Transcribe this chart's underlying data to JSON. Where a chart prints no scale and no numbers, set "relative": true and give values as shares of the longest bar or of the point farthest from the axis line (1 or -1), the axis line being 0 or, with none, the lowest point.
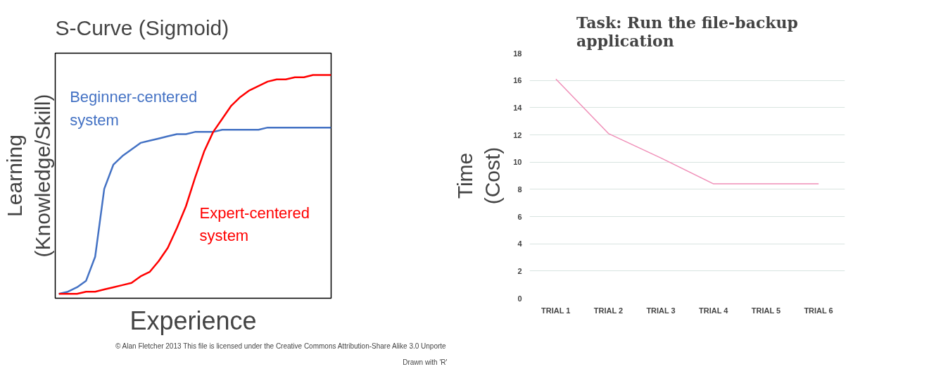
{
  "chart_data": [
    {
      "type": "line",
      "title": "S-Curve (Sigmoid)",
      "xlabel": "Experience",
      "ylabel": "Learning (Knowledge/Skill)",
      "relative": true,
      "grid": false,
      "categories": [
        null,
        null,
        null,
        null,
        null,
        null,
        null,
        null,
        null,
        null,
        null,
        null,
        null,
        null,
        null,
        null,
        null,
        null,
        null,
        null,
        null,
        null,
        null,
        null,
        null,
        null,
        null,
        null,
        null,
        null,
        null
      ],
      "series": [
        {
          "name": "Beginner-centered system",
          "color": "#4472c4",
          "values": [
            0,
            0.01,
            0.03,
            0.06,
            0.17,
            0.48,
            0.59,
            0.63,
            0.66,
            0.69,
            0.7,
            0.71,
            0.72,
            0.73,
            0.73,
            0.74,
            0.74,
            0.74,
            0.75,
            0.75,
            0.75,
            0.75,
            0.75,
            0.76,
            0.76,
            0.76,
            0.76,
            0.76,
            0.76,
            0.76,
            0.76
          ]
        },
        {
          "name": "Expert-centered system",
          "color": "#ff0000",
          "values": [
            0,
            0,
            0,
            0.01,
            0.01,
            0.02,
            0.03,
            0.04,
            0.05,
            0.08,
            0.1,
            0.15,
            0.21,
            0.3,
            0.4,
            0.53,
            0.65,
            0.74,
            0.8,
            0.86,
            0.9,
            0.93,
            0.95,
            0.97,
            0.98,
            0.98,
            0.99,
            0.99,
            1.0,
            1.0,
            1.0
          ]
        }
      ],
      "annotations": [
        "Drawn with 'R'",
        "© Alan Fletcher 2013 This file is licensed under the Creative Commons Attribution-Share Alike 3.0 Unporte"
      ]
    },
    {
      "type": "line",
      "title": "Task: Run the file-backup application",
      "ylabel": "Time (Cost)",
      "grid": "y",
      "categories": [
        "TRIAL 1",
        "TRIAL 2",
        "TRIAL 3",
        "TRIAL 4",
        "TRIAL 5",
        "TRIAL 6"
      ],
      "series": [
        {
          "color": "#f08fb8",
          "values": [
            16.1,
            12.1,
            10.3,
            8.4,
            8.4,
            8.4
          ]
        }
      ],
      "ylim": [
        0,
        18
      ],
      "yticks": [
        0,
        2,
        4,
        6,
        8,
        10,
        12,
        14,
        16,
        18
      ]
    }
  ]
}
